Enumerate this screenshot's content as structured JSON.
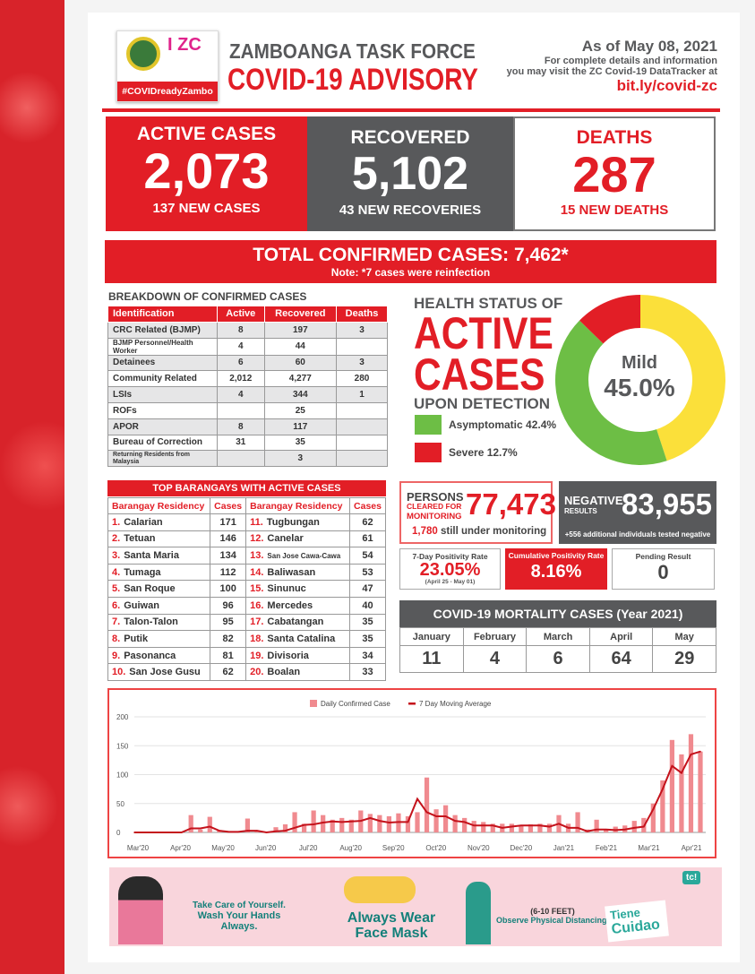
{
  "header": {
    "logo_tag": "#COVIDreadyZambo",
    "logo_text": "I ZC",
    "title_top": "ZAMBOANGA TASK FORCE",
    "title_main": "COVID-19 ADVISORY",
    "date": "As of May 08, 2021",
    "info_1": "For complete details and information",
    "info_2": "you may visit the ZC Covid-19 DataTracker at",
    "link": "bit.ly/covid-zc"
  },
  "stats": {
    "active": {
      "label": "ACTIVE CASES",
      "value": "2,073",
      "sub": "137 NEW CASES"
    },
    "recovered": {
      "label": "RECOVERED",
      "value": "5,102",
      "sub": "43 NEW RECOVERIES"
    },
    "deaths": {
      "label": "DEATHS",
      "value": "287",
      "sub": "15 NEW DEATHS"
    }
  },
  "total": {
    "label": "TOTAL CONFIRMED CASES: 7,462*",
    "note": "Note: *7 cases were reinfection"
  },
  "breakdown": {
    "title": "BREAKDOWN OF CONFIRMED CASES",
    "headers": [
      "Identification",
      "Active",
      "Recovered",
      "Deaths"
    ],
    "rows": [
      [
        "CRC Related (BJMP)",
        "8",
        "197",
        "3"
      ],
      [
        "BJMP Personnel/Health Worker",
        "4",
        "44",
        ""
      ],
      [
        "Detainees",
        "6",
        "60",
        "3"
      ],
      [
        "Community Related",
        "2,012",
        "4,277",
        "280"
      ],
      [
        "LSIs",
        "4",
        "344",
        "1"
      ],
      [
        "ROFs",
        "",
        "25",
        ""
      ],
      [
        "APOR",
        "8",
        "117",
        ""
      ],
      [
        "Bureau of Correction",
        "31",
        "35",
        ""
      ],
      [
        "Returning Residents from Malaysia",
        "",
        "3",
        ""
      ]
    ]
  },
  "health": {
    "line1": "HEALTH STATUS OF",
    "line2": "ACTIVE",
    "line3": "CASES",
    "line4": "UPON DETECTION",
    "center_label": "Mild",
    "center_value": "45.0%",
    "slices": [
      {
        "label": "Mild",
        "pct": 45.0,
        "color": "#fbe03a"
      },
      {
        "label": "Asymptomatic 42.4%",
        "pct": 42.4,
        "color": "#6dbe45"
      },
      {
        "label": "Severe 12.7%",
        "pct": 12.7,
        "color": "#e21e26"
      }
    ]
  },
  "barangays": {
    "title": "TOP BARANGAYS WITH ACTIVE CASES",
    "headers": [
      "Barangay Residency",
      "Cases",
      "Barangay Residency",
      "Cases"
    ],
    "rows": [
      [
        "1.",
        "Calarian",
        "171",
        "11.",
        "Tugbungan",
        "62"
      ],
      [
        "2.",
        "Tetuan",
        "146",
        "12.",
        "Canelar",
        "61"
      ],
      [
        "3.",
        "Santa Maria",
        "134",
        "13.",
        "San Jose Cawa-Cawa",
        "54"
      ],
      [
        "4.",
        "Tumaga",
        "112",
        "14.",
        "Baliwasan",
        "53"
      ],
      [
        "5.",
        "San Roque",
        "100",
        "15.",
        "Sinunuc",
        "47"
      ],
      [
        "6.",
        "Guiwan",
        "96",
        "16.",
        "Mercedes",
        "40"
      ],
      [
        "7.",
        "Talon-Talon",
        "95",
        "17.",
        "Cabatangan",
        "35"
      ],
      [
        "8.",
        "Putik",
        "82",
        "18.",
        "Santa Catalina",
        "35"
      ],
      [
        "9.",
        "Pasonanca",
        "81",
        "19.",
        "Divisoria",
        "34"
      ],
      [
        "10.",
        "San Jose Gusu",
        "62",
        "20.",
        "Boalan",
        "33"
      ]
    ]
  },
  "monitoring": {
    "l1": "PERSONS",
    "l2": "CLEARED FOR",
    "l3": "MONITORING",
    "value": "77,473",
    "sub_num": "1,780",
    "sub": "still under monitoring"
  },
  "negative": {
    "l1": "NEGATIVE",
    "l2": "RESULTS",
    "value": "83,955",
    "sub": "+556 additional individuals tested negative"
  },
  "positivity": {
    "seven_label": "7-Day Positivity Rate",
    "seven_value": "23.05%",
    "seven_range": "(April 25 - May 01)",
    "cum_label": "Cumulative Positivity Rate",
    "cum_value": "8.16%",
    "pending_label": "Pending Result",
    "pending_value": "0"
  },
  "mortality": {
    "title": "COVID-19 MORTALITY CASES (Year 2021)",
    "months": [
      "January",
      "February",
      "March",
      "April",
      "May"
    ],
    "values": [
      "11",
      "4",
      "6",
      "64",
      "29"
    ]
  },
  "chart_data": {
    "type": "bar+line",
    "legend": [
      "Daily Confirmed Case",
      "7 Day Moving Average"
    ],
    "legend_position": "top",
    "ylim": [
      0,
      200
    ],
    "yticks": [
      "0",
      "50",
      "100",
      "150",
      "200"
    ],
    "xticks": [
      "Mar'20",
      "Apr'20",
      "May'20",
      "Jun'20",
      "Jul'20",
      "Aug'20",
      "Sep'20",
      "Oct'20",
      "Nov'20",
      "Dec'20",
      "Jan'21",
      "Feb'21",
      "Mar'21",
      "Apr'21"
    ],
    "series": [
      {
        "name": "Daily Confirmed Case",
        "color": "#f08a8f",
        "values": [
          0,
          0,
          0,
          1,
          0,
          0,
          30,
          5,
          27,
          4,
          2,
          1,
          24,
          3,
          0,
          9,
          14,
          35,
          15,
          38,
          30,
          22,
          25,
          22,
          38,
          32,
          30,
          28,
          33,
          28,
          35,
          95,
          40,
          47,
          30,
          25,
          20,
          18,
          15,
          15,
          15,
          12,
          14,
          15,
          15,
          30,
          15,
          35,
          5,
          22,
          5,
          10,
          12,
          20,
          25,
          50,
          90,
          160,
          135,
          170,
          140
        ],
        "sampling": "weekly"
      },
      {
        "name": "7 Day Moving Average",
        "color": "#c4121b",
        "values": [
          0,
          0,
          0,
          0,
          0,
          0,
          7,
          7,
          10,
          3,
          1,
          1,
          3,
          3,
          0,
          2,
          3,
          8,
          13,
          14,
          17,
          19,
          18,
          19,
          20,
          25,
          20,
          17,
          18,
          18,
          58,
          35,
          28,
          28,
          20,
          18,
          12,
          12,
          12,
          8,
          10,
          12,
          12,
          12,
          10,
          15,
          8,
          8,
          2,
          5,
          5,
          4,
          5,
          8,
          10,
          40,
          75,
          115,
          103,
          135,
          140
        ],
        "sampling": "weekly"
      }
    ],
    "grid": "horizontal"
  },
  "banner": {
    "t1a": "Take Care of Yourself.",
    "t1b": "Wash Your Hands Always.",
    "t2a": "Always Wear",
    "t2b": "Face Mask",
    "t3a": "(6-10 FEET)",
    "t3b": "Observe Physical Distancing.",
    "t4a": "Tiene",
    "t4b": "Cuidao",
    "t4c": "tc!"
  }
}
